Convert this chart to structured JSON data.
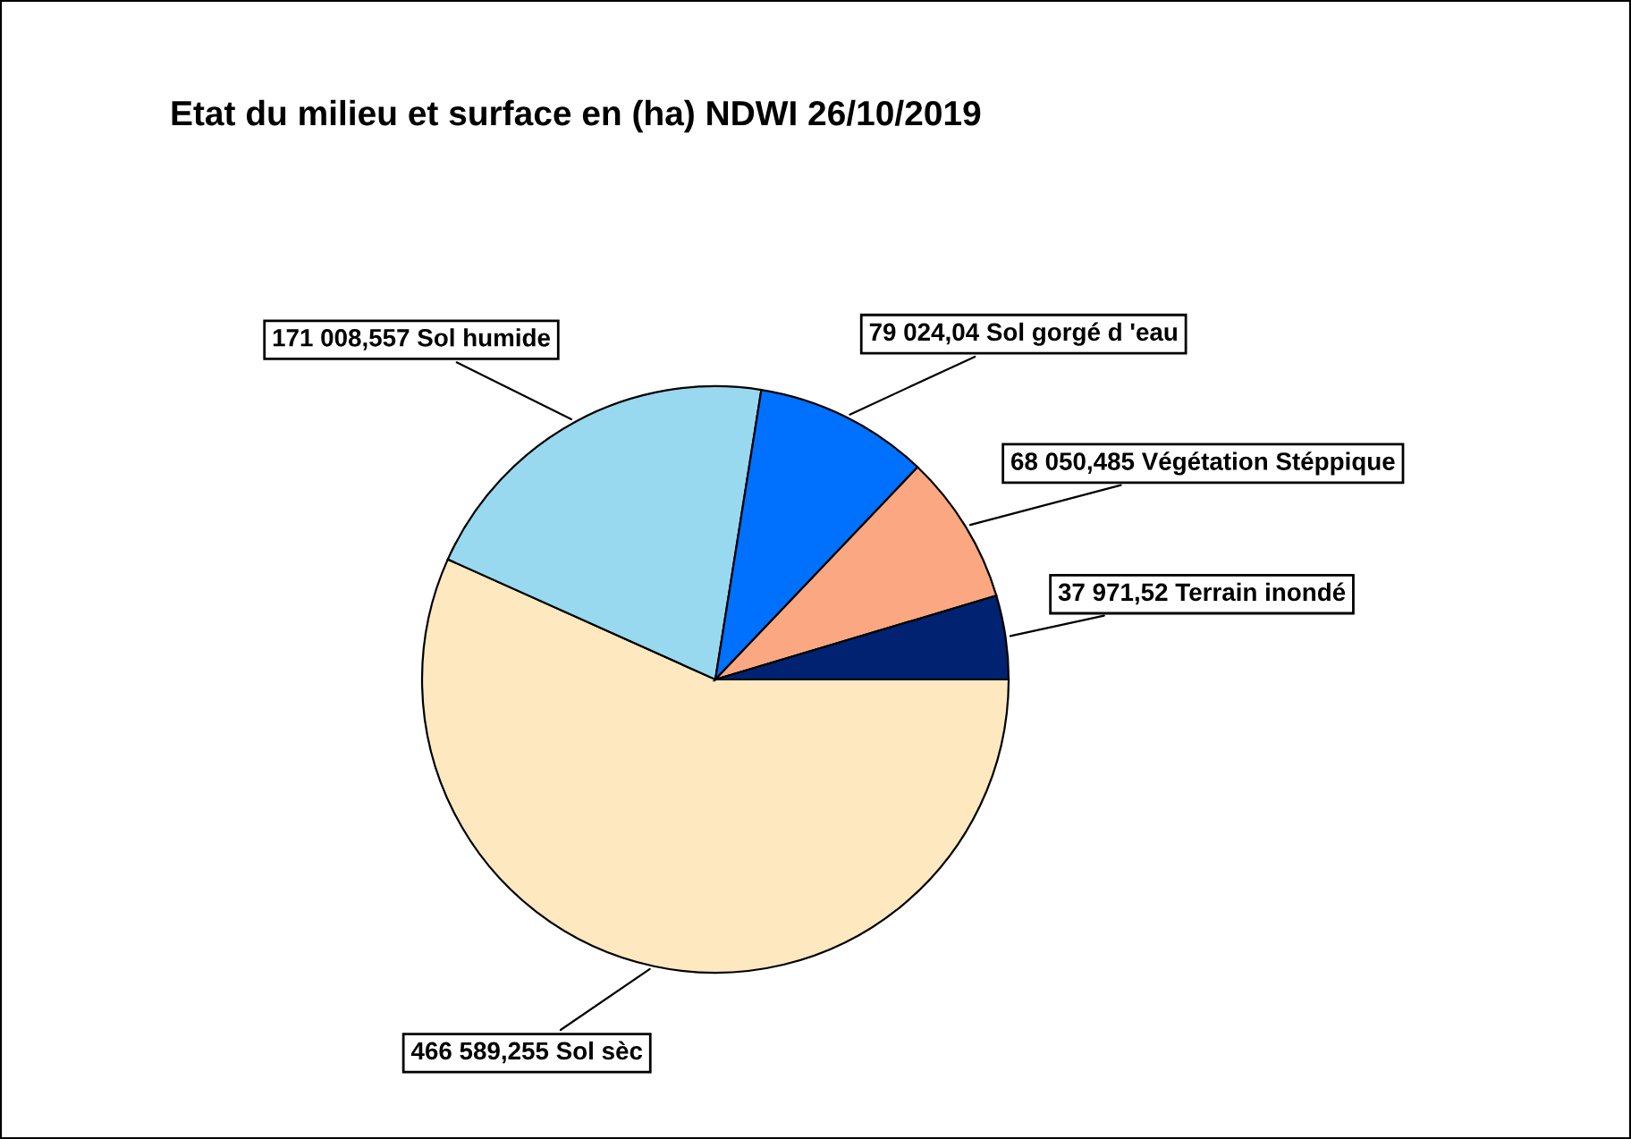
{
  "chart_data": {
    "type": "pie",
    "title": "Etat du milieu et surface en (ha) NDWI 26/10/2019",
    "categories": [
      "Sol sèc",
      "Sol humide",
      "Sol gorgé d 'eau",
      "Végétation Stéppique",
      "Terrain inondé"
    ],
    "values": [
      466589.255,
      171008.557,
      79024.04,
      68050.485,
      37971.52
    ],
    "value_labels": [
      "466 589,255",
      "171 008,557",
      "79 024,04",
      "68 050,485",
      "37 971,52"
    ],
    "colors": [
      "#fde8c0",
      "#99d9ef",
      "#0070ff",
      "#fba882",
      "#002270"
    ],
    "legend": false
  }
}
